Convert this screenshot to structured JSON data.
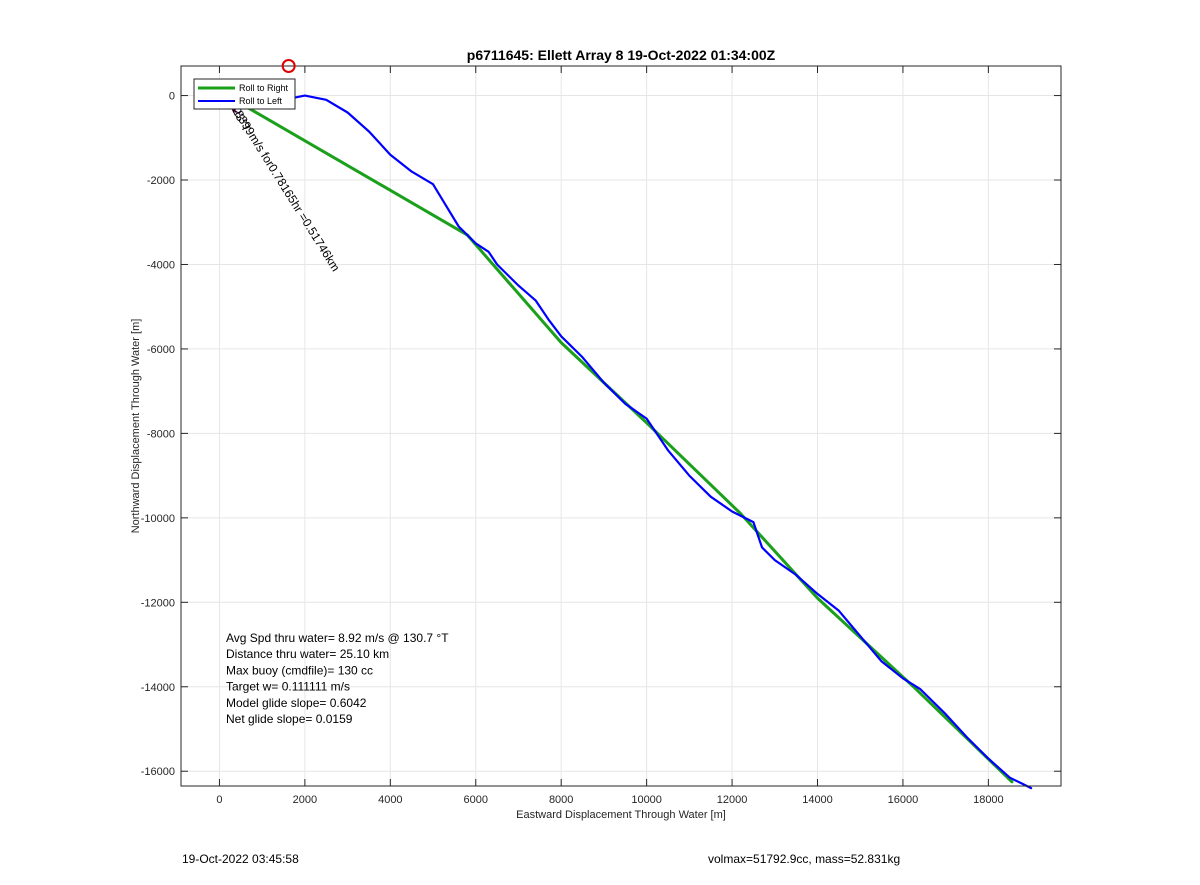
{
  "chart_data": {
    "type": "line",
    "title": "p6711645: Ellett Array 8 19-Oct-2022 01:34:00Z",
    "xlabel": "Eastward Displacement Through Water [m]",
    "ylabel": "Northward Displacement Through Water [m]",
    "xlim": [
      -900,
      19700
    ],
    "ylim": [
      -16350,
      700
    ],
    "xticks": [
      0,
      2000,
      4000,
      6000,
      8000,
      10000,
      12000,
      14000,
      16000,
      18000
    ],
    "yticks": [
      0,
      -2000,
      -4000,
      -6000,
      -8000,
      -10000,
      -12000,
      -14000,
      -16000
    ],
    "grid": true,
    "legend_location": "top-left",
    "legend": [
      "Roll to Right",
      "Roll to Left"
    ],
    "series": [
      {
        "name": "Roll to Right",
        "color": "#1aa01a",
        "x": [
          0,
          600,
          5800,
          8000,
          10000,
          12200,
          14000,
          16300,
          18550
        ],
        "y": [
          0,
          -250,
          -3300,
          -5850,
          -7750,
          -9900,
          -11900,
          -14050,
          -16250
        ]
      },
      {
        "name": "Roll to Left",
        "color": "#0000ff",
        "x": [
          0,
          400,
          1000,
          1500,
          2000,
          2500,
          3000,
          3500,
          4000,
          4500,
          5000,
          5300,
          5600,
          5800,
          6000,
          6300,
          6500,
          7000,
          7400,
          7700,
          8000,
          8500,
          9000,
          9500,
          10000,
          10500,
          11000,
          11500,
          12000,
          12500,
          12700,
          13000,
          13500,
          14000,
          14500,
          15000,
          15500,
          16000,
          16400,
          17000,
          17500,
          18000,
          18500,
          18800,
          19000
        ],
        "y": [
          0,
          -300,
          -300,
          -100,
          0,
          -100,
          -400,
          -850,
          -1400,
          -1800,
          -2100,
          -2600,
          -3100,
          -3300,
          -3500,
          -3700,
          -4000,
          -4500,
          -4850,
          -5300,
          -5700,
          -6200,
          -6800,
          -7300,
          -7650,
          -8400,
          -9000,
          -9500,
          -9850,
          -10100,
          -10700,
          -11000,
          -11350,
          -11800,
          -12200,
          -12800,
          -13400,
          -13800,
          -14050,
          -14650,
          -15200,
          -15700,
          -16150,
          -16300,
          -16400
        ]
      }
    ],
    "annotations": [
      {
        "text": "Avg Spd thru water=  8.92 m/s @ 130.7 °T"
      },
      {
        "text": "Distance thru water= 25.10 km"
      },
      {
        "text": "Max buoy (cmdfile)= 130 cc"
      },
      {
        "text": "Target w= 0.111111 m/s"
      },
      {
        "text": "Model glide slope= 0.6042"
      },
      {
        "text": "Net glide slope= 0.0159"
      }
    ],
    "rotated_label": "0.18399m/s for0.78165hr =0.51746km",
    "rotated_label_short": "0.23°T",
    "marker": {
      "x": 1620,
      "y": 700,
      "color": "#e00000"
    },
    "arrow": {
      "x0": 0,
      "y0": 0,
      "x1": 400,
      "y1": -400,
      "color": "#c000c0"
    }
  },
  "footer": {
    "left": "19-Oct-2022 03:45:58",
    "right": "volmax=51792.9cc, mass=52.831kg"
  }
}
